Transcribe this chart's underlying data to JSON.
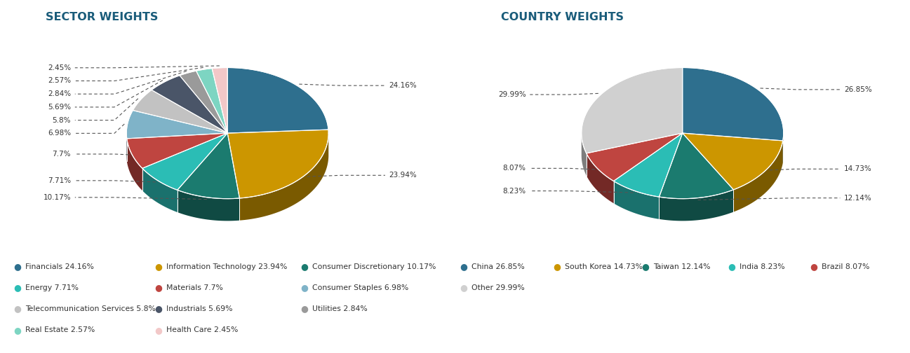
{
  "sector_title": "SECTOR WEIGHTS",
  "sector_labels": [
    "Financials",
    "Information Technology",
    "Consumer Discretionary",
    "Energy",
    "Materials",
    "Consumer Staples",
    "Telecommunication Services",
    "Industrials",
    "Utilities",
    "Real Estate",
    "Health Care"
  ],
  "sector_values": [
    24.16,
    23.94,
    10.17,
    7.71,
    7.7,
    6.98,
    5.8,
    5.69,
    2.84,
    2.57,
    2.45
  ],
  "sector_colors": [
    "#2e6f8e",
    "#cc9600",
    "#1b7b6f",
    "#2bbdb5",
    "#bf4540",
    "#7fb3c8",
    "#c2c2c2",
    "#4a5568",
    "#9a9a9a",
    "#7dd5c2",
    "#f2c8c8"
  ],
  "sector_pct_labels": [
    "24.16%",
    "23.94%",
    "10.17%",
    "7.71%",
    "7.7%",
    "6.98%",
    "5.8%",
    "5.69%",
    "2.84%",
    "2.57%",
    "2.45%"
  ],
  "country_title": "COUNTRY WEIGHTS",
  "country_labels": [
    "China",
    "South Korea",
    "Taiwan",
    "India",
    "Brazil",
    "Other"
  ],
  "country_values": [
    26.85,
    14.73,
    12.14,
    8.23,
    8.07,
    29.99
  ],
  "country_colors": [
    "#2e6f8e",
    "#cc9600",
    "#1b7b6f",
    "#2bbdb5",
    "#bf4540",
    "#d0d0d0"
  ],
  "country_pct_labels": [
    "26.85%",
    "14.73%",
    "12.14%",
    "8.23%",
    "8.07%",
    "29.99%"
  ],
  "bg_color": "#ffffff",
  "title_color": "#1a5c7a",
  "text_color": "#333333",
  "dash_color": "#555555"
}
